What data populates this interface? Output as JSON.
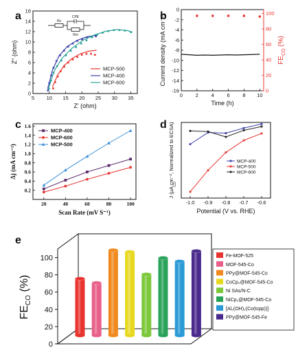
{
  "panels": {
    "a": {
      "label": "a"
    },
    "b": {
      "label": "b"
    },
    "c": {
      "label": "c"
    },
    "d": {
      "label": "d"
    },
    "e": {
      "label": "e"
    }
  },
  "colors": {
    "red": "#e8342f",
    "blue": "#3a3fa8",
    "teal": "#2aa198",
    "purple": "#5a2a6a",
    "lightblue": "#3a8fd8",
    "black": "#111111"
  },
  "chart_data": [
    {
      "panel": "a",
      "type": "scatter",
      "xlabel": "Z' (ohm)",
      "ylabel": "Z\" (ohm)",
      "xlim": [
        5,
        37
      ],
      "ylim": [
        0,
        16
      ],
      "xticks": [
        5,
        10,
        15,
        20,
        25,
        30,
        35
      ],
      "yticks": [
        0,
        2,
        4,
        6,
        8,
        10,
        12,
        14,
        16
      ],
      "legend_position": "bottom-right",
      "circuit_labels": {
        "rs": "Rs",
        "cpe": "CPE",
        "rct": "Rct"
      },
      "series": [
        {
          "name": "MCP-500",
          "color": "#e8342f",
          "x": [
            11.2,
            11.8,
            12.6,
            13.5,
            14.6,
            15.8,
            17.2,
            18.6,
            20.0,
            21.4,
            22.8,
            24.0
          ],
          "y": [
            1.0,
            2.2,
            3.3,
            4.3,
            5.2,
            6.0,
            6.6,
            7.1,
            7.5,
            7.7,
            7.7,
            7.5
          ],
          "fit_x": [
            11.0,
            12.5,
            14.5,
            17.0,
            19.5,
            22.0,
            24.5
          ],
          "fit_y": [
            1.3,
            3.5,
            5.4,
            6.8,
            7.7,
            8.2,
            8.4
          ]
        },
        {
          "name": "MCP-400",
          "color": "#3a3fa8",
          "x": [
            9.6,
            10.0,
            10.6,
            11.3,
            12.2,
            13.3,
            14.5,
            15.8,
            17.2,
            18.6,
            20.1,
            21.6,
            23.1,
            24.3
          ],
          "y": [
            0.6,
            2.0,
            3.5,
            5.0,
            6.3,
            7.4,
            8.3,
            9.1,
            9.7,
            10.2,
            10.5,
            10.8,
            11.0,
            11.1
          ],
          "fit_x": [
            9.5,
            11.0,
            13.0,
            15.5,
            18.5,
            21.5,
            24.5
          ],
          "fit_y": [
            0.9,
            4.6,
            7.3,
            9.1,
            10.3,
            11.0,
            11.3
          ]
        },
        {
          "name": "MCP-600",
          "color": "#2aa198",
          "x": [
            9.9,
            10.5,
            11.3,
            12.4,
            13.7,
            15.1,
            16.6,
            18.2,
            19.8,
            21.4,
            23.0,
            24.7,
            26.4,
            28.1,
            29.8,
            31.5,
            33.2,
            35.0
          ],
          "y": [
            0.9,
            2.5,
            4.0,
            5.3,
            6.4,
            7.4,
            8.3,
            9.0,
            9.7,
            10.3,
            10.9,
            11.4,
            11.8,
            12.1,
            12.3,
            12.3,
            12.2,
            11.9
          ],
          "fit_x": [
            9.8,
            11.5,
            14.0,
            17.0,
            20.5,
            24.0,
            27.5,
            31.0,
            34.0,
            35.5
          ],
          "fit_y": [
            1.0,
            4.4,
            6.9,
            8.8,
            10.4,
            11.4,
            12.1,
            12.4,
            12.2,
            11.9
          ]
        }
      ]
    },
    {
      "panel": "b",
      "type": "line",
      "xlabel": "Time (h)",
      "ylabel": "Current density (mA cm⁻²)",
      "ylabel_right": "FE",
      "ylabel_right_sub": "CO",
      "ylabel_right_unit": "(%)",
      "xlim": [
        0,
        10.5
      ],
      "ylim": [
        -16,
        0
      ],
      "ylim_right": [
        0,
        105
      ],
      "xticks": [
        0,
        2,
        4,
        6,
        8,
        10
      ],
      "yticks": [
        0,
        -2,
        -4,
        -6,
        -8,
        -10,
        -12,
        -14,
        -16
      ],
      "yticks_right": [
        0,
        20,
        40,
        60,
        80,
        100
      ],
      "series": [
        {
          "name": "Current density",
          "color": "#111111",
          "x": [
            0,
            1,
            2,
            3,
            4,
            5,
            6,
            7,
            8,
            9,
            10
          ],
          "y": [
            -8.8,
            -8.9,
            -9.0,
            -8.95,
            -9.0,
            -8.95,
            -8.9,
            -8.95,
            -8.9,
            -8.85,
            -8.8
          ]
        },
        {
          "name": "FE(CO)",
          "color": "#e8342f",
          "x": [
            2,
            4,
            6,
            8,
            10
          ],
          "y": [
            97,
            97,
            97,
            97,
            96
          ]
        }
      ]
    },
    {
      "panel": "c",
      "type": "line",
      "xlabel": "Scan Rate (mV S⁻¹)",
      "ylabel": "Δj (mA cm⁻²)",
      "xlim": [
        10,
        105
      ],
      "ylim": [
        0.0,
        1.65
      ],
      "xticks": [
        20,
        40,
        60,
        80,
        100
      ],
      "yticks": [
        0.2,
        0.4,
        0.6,
        0.8,
        1.0,
        1.2,
        1.4,
        1.6
      ],
      "legend_position": "top-left",
      "series": [
        {
          "name": "MCP-400",
          "color": "#5a2a6a",
          "marker": "square",
          "x": [
            20,
            40,
            60,
            80,
            100
          ],
          "y": [
            0.23,
            0.42,
            0.6,
            0.74,
            0.88
          ]
        },
        {
          "name": "MCP-600",
          "color": "#e8342f",
          "marker": "circle",
          "x": [
            20,
            40,
            60,
            80,
            100
          ],
          "y": [
            0.16,
            0.29,
            0.44,
            0.57,
            0.7
          ]
        },
        {
          "name": "MCP-500",
          "color": "#3a8fd8",
          "marker": "triangle",
          "x": [
            20,
            40,
            60,
            80,
            100
          ],
          "y": [
            0.31,
            0.64,
            0.94,
            1.23,
            1.5
          ]
        }
      ]
    },
    {
      "panel": "d",
      "type": "line",
      "xlabel": "Potential (V vs. RHE)",
      "ylabel": "J  (μA cm⁻², Normalized to ECSA)",
      "ylabel_sub": "CO",
      "xlim": [
        -1.05,
        -0.55
      ],
      "ylim": [
        -24,
        0
      ],
      "xticks": [
        -1.0,
        -0.9,
        -0.8,
        -0.7,
        -0.6
      ],
      "legend_position": "center-right",
      "series": [
        {
          "name": "MCP-400",
          "color": "#3a3fa8",
          "x": [
            -1.0,
            -0.9,
            -0.8,
            -0.7,
            -0.6
          ],
          "y": [
            -6.9,
            -3.2,
            -3.4,
            -1.8,
            -0.5
          ]
        },
        {
          "name": "MCP-500",
          "color": "#e8342f",
          "x": [
            -1.0,
            -0.9,
            -0.8,
            -0.7,
            -0.6
          ],
          "y": [
            -22.0,
            -15.2,
            -9.5,
            -5.7,
            -3.5
          ]
        },
        {
          "name": "MCP-600",
          "color": "#222222",
          "x": [
            -1.0,
            -0.9,
            -0.8,
            -0.7,
            -0.6
          ],
          "y": [
            -2.7,
            -2.9,
            -4.6,
            -2.5,
            -1.3
          ]
        }
      ]
    },
    {
      "panel": "e",
      "type": "bar",
      "ylabel": "FE",
      "ylabel_sub": "CO",
      "ylabel_unit": "(%)",
      "ylim": [
        0,
        110
      ],
      "yticks": [
        0,
        20,
        40,
        60,
        80,
        100
      ],
      "legend_position": "right",
      "categories": [
        "Fe-MOF-525",
        "MOF-545-Co",
        "PPy@MOF-545-Co",
        "CoCp₂@MOF-545-Co",
        "Ni SAs/N-C",
        "NiCp₂@MOF-545-Co",
        "[Al₂(OH)₂(Co(tcpp))]",
        "PPy@MOF-545-Fe"
      ],
      "values": [
        66,
        61,
        99,
        97,
        71,
        90,
        86,
        98
      ],
      "colors": [
        "#e8342f",
        "#e8608a",
        "#f08a1e",
        "#e8d820",
        "#7cc83a",
        "#2aa35a",
        "#2a9ad6",
        "#4a2a8c"
      ]
    }
  ]
}
